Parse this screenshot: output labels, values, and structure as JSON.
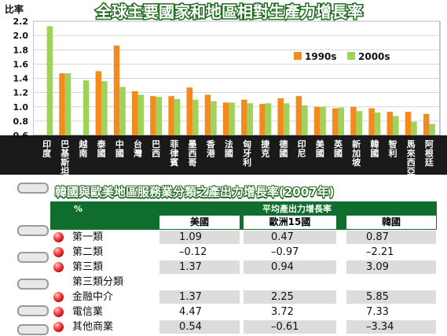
{
  "chart_data": {
    "type": "bar",
    "title": "全球主要國家和地區相對生產力增長率",
    "ylabel": "比率",
    "ylim": [
      0.6,
      2.2
    ],
    "yticks": [
      "0.6",
      "0.8",
      "1.0",
      "1.2",
      "1.4",
      "1.6",
      "1.8",
      "2.0",
      "2.2"
    ],
    "categories": [
      "印度",
      "巴基斯坦",
      "越南",
      "泰國",
      "中國",
      "台灣",
      "巴西",
      "菲律賓",
      "墨西哥",
      "香港",
      "法國",
      "匈牙利",
      "捷克",
      "德國",
      "印尼",
      "美國",
      "英國",
      "新加坡",
      "韓國",
      "智利",
      "馬來西亞",
      "阿根廷"
    ],
    "series": [
      {
        "name": "1990s",
        "color": "#f28a1e",
        "values": [
          null,
          1.47,
          null,
          1.5,
          1.86,
          1.22,
          1.15,
          1.15,
          1.27,
          1.17,
          1.06,
          1.1,
          1.04,
          1.12,
          1.15,
          1.0,
          0.98,
          1.0,
          0.98,
          0.93,
          0.93,
          0.9
        ]
      },
      {
        "name": "2000s",
        "color": "#9fd25a",
        "values": [
          2.13,
          1.47,
          1.37,
          1.36,
          1.28,
          1.17,
          1.14,
          1.11,
          1.1,
          1.08,
          1.06,
          1.05,
          1.05,
          1.05,
          1.02,
          1.0,
          0.99,
          0.94,
          0.92,
          0.87,
          0.79,
          0.76
        ]
      }
    ],
    "legend_position": "right"
  },
  "table": {
    "title": "韓國與歐美地區服務業分類之產出力增長率(2007年)",
    "unit": "%",
    "group_header": "平均產出力增長率",
    "columns": [
      "美國",
      "歐洲15國",
      "韓國"
    ],
    "rows": [
      {
        "label": "第一類",
        "values": [
          "1.09",
          "0.47",
          "0.87"
        ],
        "bullet": true
      },
      {
        "label": "第二類",
        "values": [
          "–0.12",
          "–0.97",
          "–2.21"
        ],
        "bullet": true
      },
      {
        "label": "第三類",
        "values": [
          "1.37",
          "0.94",
          "3.09"
        ],
        "bullet": true
      },
      {
        "label": "第三類分類",
        "values": [
          "",
          "",
          ""
        ],
        "bullet": false
      },
      {
        "label": "金融中介",
        "values": [
          "1.37",
          "2.25",
          "5.85"
        ],
        "bullet": true
      },
      {
        "label": "電信業",
        "values": [
          "4.47",
          "3.72",
          "7.33"
        ],
        "bullet": true
      },
      {
        "label": "其他商業",
        "values": [
          "0.54",
          "–0.61",
          "–3.34"
        ],
        "bullet": true
      }
    ]
  }
}
